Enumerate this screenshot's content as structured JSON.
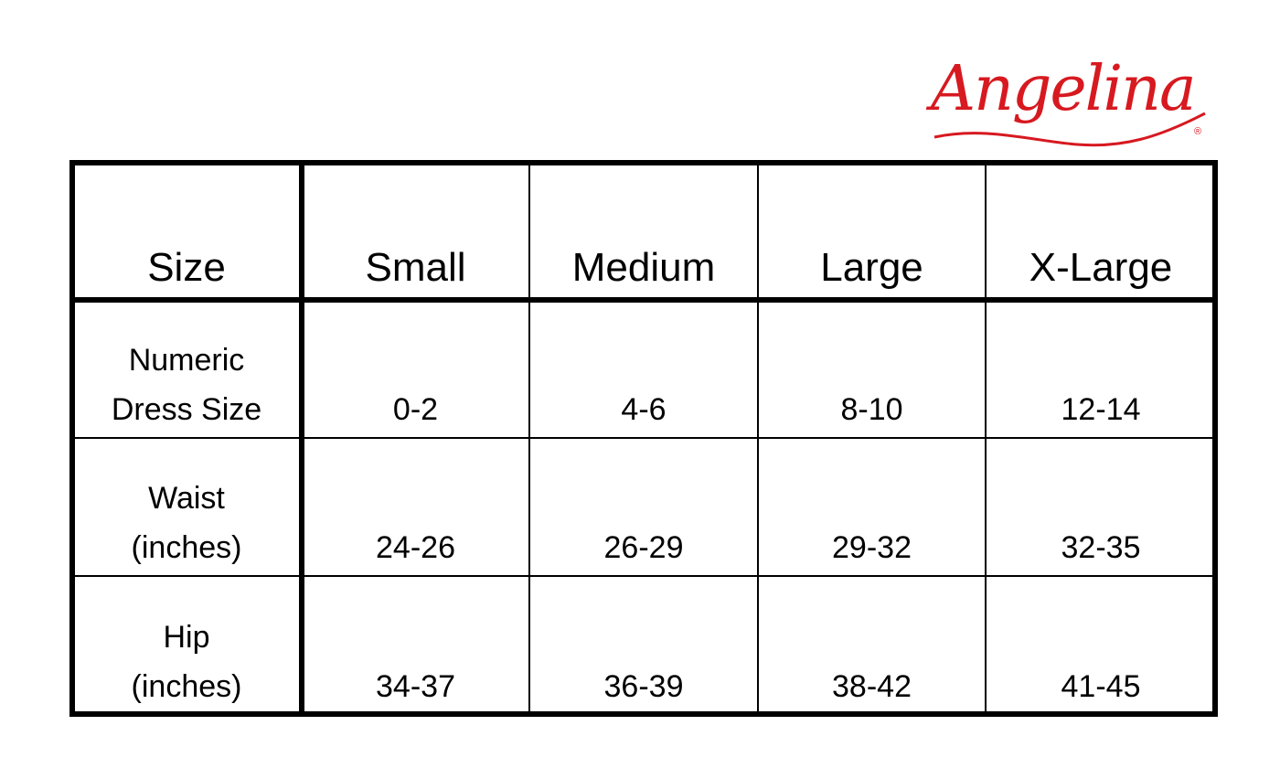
{
  "brand": {
    "logo_text": "Angelina",
    "registered": "®",
    "color": "#d71920"
  },
  "table": {
    "headers": [
      "Size",
      "Small",
      "Medium",
      "Large",
      "X-Large"
    ],
    "rows": [
      {
        "label": [
          "Numeric",
          "Dress Size"
        ],
        "values": [
          "0-2",
          "4-6",
          "8-10",
          "12-14"
        ]
      },
      {
        "label": [
          "Waist",
          "(inches)"
        ],
        "values": [
          "24-26",
          "26-29",
          "29-32",
          "32-35"
        ]
      },
      {
        "label": [
          "Hip",
          "(inches)"
        ],
        "values": [
          "34-37",
          "36-39",
          "38-42",
          "41-45"
        ]
      }
    ]
  }
}
